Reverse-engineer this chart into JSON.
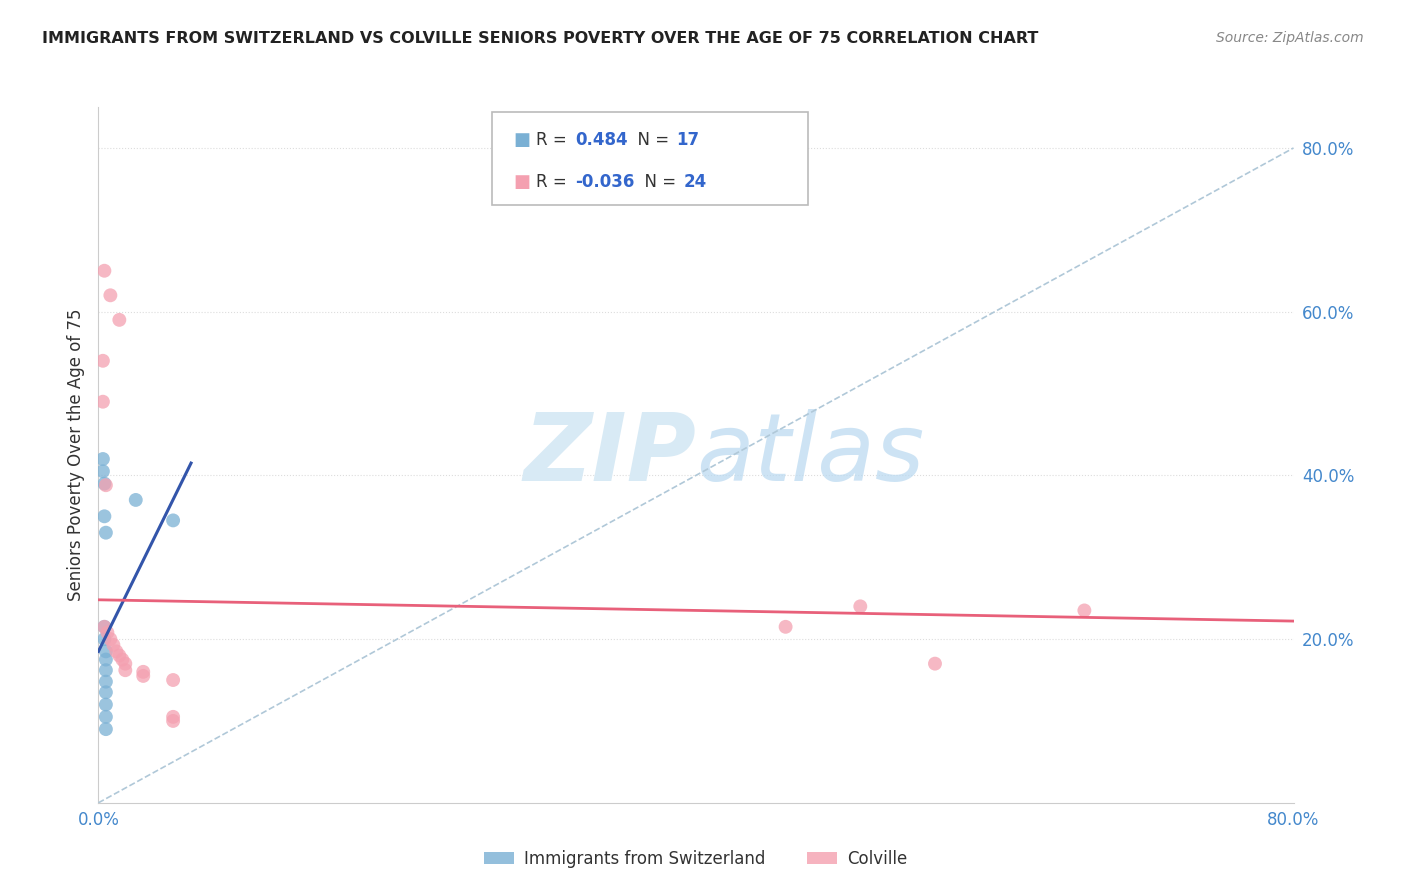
{
  "title": "IMMIGRANTS FROM SWITZERLAND VS COLVILLE SENIORS POVERTY OVER THE AGE OF 75 CORRELATION CHART",
  "source": "Source: ZipAtlas.com",
  "ylabel": "Seniors Poverty Over the Age of 75",
  "legend_blue_r_val": "0.484",
  "legend_blue_n_val": "17",
  "legend_pink_r_val": "-0.036",
  "legend_pink_n_val": "24",
  "legend_label_blue": "Immigrants from Switzerland",
  "legend_label_pink": "Colville",
  "xlim": [
    0.0,
    0.8
  ],
  "ylim": [
    0.0,
    0.85
  ],
  "yticks": [
    0.0,
    0.2,
    0.4,
    0.6,
    0.8
  ],
  "xticks": [
    0.0,
    0.2,
    0.4,
    0.6,
    0.8
  ],
  "blue_pts": [
    [
      0.003,
      0.42
    ],
    [
      0.003,
      0.405
    ],
    [
      0.004,
      0.39
    ],
    [
      0.004,
      0.35
    ],
    [
      0.005,
      0.33
    ],
    [
      0.004,
      0.215
    ],
    [
      0.004,
      0.2
    ],
    [
      0.005,
      0.185
    ],
    [
      0.005,
      0.175
    ],
    [
      0.005,
      0.162
    ],
    [
      0.005,
      0.148
    ],
    [
      0.005,
      0.135
    ],
    [
      0.005,
      0.12
    ],
    [
      0.005,
      0.105
    ],
    [
      0.005,
      0.09
    ],
    [
      0.025,
      0.37
    ],
    [
      0.05,
      0.345
    ]
  ],
  "pink_pts": [
    [
      0.004,
      0.65
    ],
    [
      0.008,
      0.62
    ],
    [
      0.014,
      0.59
    ],
    [
      0.003,
      0.54
    ],
    [
      0.003,
      0.49
    ],
    [
      0.005,
      0.388
    ],
    [
      0.004,
      0.215
    ],
    [
      0.006,
      0.208
    ],
    [
      0.008,
      0.2
    ],
    [
      0.01,
      0.193
    ],
    [
      0.012,
      0.185
    ],
    [
      0.014,
      0.18
    ],
    [
      0.016,
      0.175
    ],
    [
      0.018,
      0.17
    ],
    [
      0.018,
      0.162
    ],
    [
      0.03,
      0.16
    ],
    [
      0.03,
      0.155
    ],
    [
      0.05,
      0.15
    ],
    [
      0.05,
      0.105
    ],
    [
      0.05,
      0.1
    ],
    [
      0.46,
      0.215
    ],
    [
      0.51,
      0.24
    ],
    [
      0.56,
      0.17
    ],
    [
      0.66,
      0.235
    ]
  ],
  "blue_line_x": [
    0.0,
    0.062
  ],
  "blue_line_y": [
    0.185,
    0.415
  ],
  "pink_line_x": [
    0.0,
    0.8
  ],
  "pink_line_y": [
    0.248,
    0.222
  ],
  "dashed_line_x": [
    0.0,
    0.8
  ],
  "dashed_line_y": [
    0.0,
    0.8
  ],
  "background_color": "#ffffff",
  "blue_color": "#7ab0d4",
  "pink_color": "#f4a0b0",
  "blue_line_color": "#3355aa",
  "pink_line_color": "#e8607a",
  "dashed_color": "#b0c8d8",
  "grid_color": "#dddddd",
  "watermark_color": "#d8eaf5"
}
